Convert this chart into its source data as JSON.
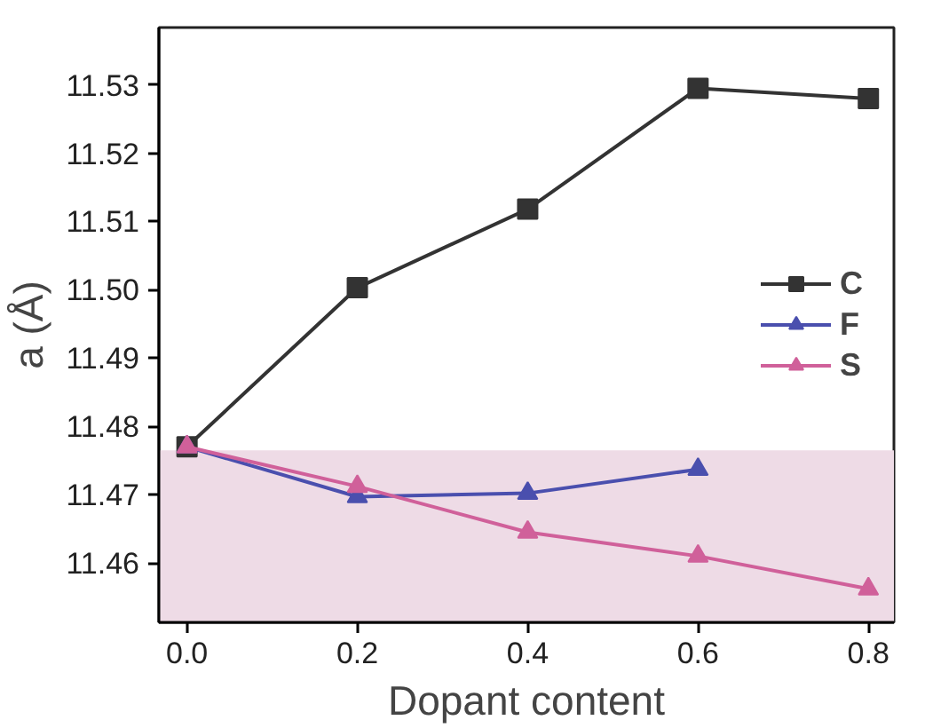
{
  "chart_data": {
    "type": "line",
    "xlabel": "Dopant content",
    "ylabel": "a (Å)",
    "xlim": [
      -0.033,
      0.83
    ],
    "ylim": [
      11.4513,
      11.5384
    ],
    "xticks": [
      {
        "value": 0,
        "label": "0.0"
      },
      {
        "value": 0.2,
        "label": "0.2"
      },
      {
        "value": 0.4,
        "label": "0.4"
      },
      {
        "value": 0.6,
        "label": "0.6"
      },
      {
        "value": 0.8,
        "label": "0.8"
      }
    ],
    "yticks": [
      11.46,
      11.47,
      11.48,
      11.49,
      {
        "value": 11.5,
        "label": "11.50"
      },
      11.51,
      11.52,
      11.53
    ],
    "grid": false,
    "legend": "right",
    "bands": [
      {
        "axis": "y",
        "from": 11.4513,
        "to": 11.4765,
        "color": "#eedbe6"
      }
    ],
    "series": [
      {
        "name": "C",
        "color": "#333333",
        "marker": "square",
        "x": [
          0,
          0.2,
          0.4,
          0.6,
          0.8
        ],
        "values": [
          11.477,
          11.5003,
          11.5118,
          11.5295,
          11.528
        ]
      },
      {
        "name": "F",
        "color": "#4a4fae",
        "marker": "triangle",
        "x": [
          0,
          0.2,
          0.4,
          0.6
        ],
        "values": [
          11.477,
          11.4697,
          11.4702,
          11.4737
        ]
      },
      {
        "name": "S",
        "color": "#d0609a",
        "marker": "triangle",
        "x": [
          0,
          0.2,
          0.4,
          0.6,
          0.8
        ],
        "values": [
          11.477,
          11.4712,
          11.4645,
          11.461,
          11.4562
        ]
      }
    ]
  }
}
